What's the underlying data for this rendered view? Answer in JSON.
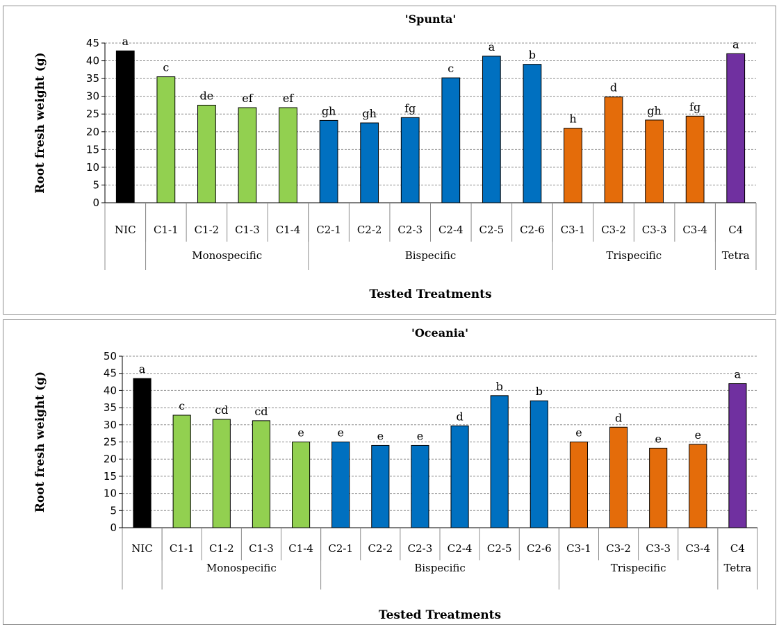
{
  "colors": {
    "control": "#000000",
    "monospecific": "#92D050",
    "bispecific": "#0070C0",
    "trispecific": "#E46C0A",
    "tetra": "#7030A0"
  },
  "chart_data": [
    {
      "type": "bar",
      "title": "'Spunta'",
      "xlabel": "Tested Treatments",
      "ylabel": "Root  fresh weight (g)",
      "ylim": [
        0,
        45
      ],
      "ytick_step": 5,
      "grid": true,
      "categories": [
        "NIC",
        "C1-1",
        "C1-2",
        "C1-3",
        "C1-4",
        "C2-1",
        "C2-2",
        "C2-3",
        "C2-4",
        "C2-5",
        "C2-6",
        "C3-1",
        "C3-2",
        "C3-3",
        "C3-4",
        "C4"
      ],
      "values": [
        42.8,
        35.5,
        27.5,
        26.8,
        26.8,
        23.2,
        22.5,
        24.0,
        35.2,
        41.3,
        39.0,
        21.0,
        29.8,
        23.3,
        24.4,
        42.0
      ],
      "letters": [
        "a",
        "c",
        "de",
        "ef",
        "ef",
        "gh",
        "gh",
        "fg",
        "c",
        "a",
        "b",
        "h",
        "d",
        "gh",
        "fg",
        "a"
      ],
      "groups": [
        {
          "label": "",
          "start": 0,
          "end": 0
        },
        {
          "label": "Monospecific",
          "start": 1,
          "end": 4
        },
        {
          "label": "Bispecific",
          "start": 5,
          "end": 10
        },
        {
          "label": "Trispecific",
          "start": 11,
          "end": 14
        },
        {
          "label": "Tetra",
          "start": 15,
          "end": 15
        }
      ]
    },
    {
      "type": "bar",
      "title": "'Oceania'",
      "xlabel": "Tested Treatments",
      "ylabel": "Root  fresh weight (g)",
      "ylim": [
        0,
        50
      ],
      "ytick_step": 5,
      "grid": true,
      "categories": [
        "NIC",
        "C1-1",
        "C1-2",
        "C1-3",
        "C1-4",
        "C2-1",
        "C2-2",
        "C2-3",
        "C2-4",
        "C2-5",
        "C2-6",
        "C3-1",
        "C3-2",
        "C3-3",
        "C3-4",
        "C4"
      ],
      "values": [
        43.5,
        32.8,
        31.6,
        31.2,
        25.0,
        25.0,
        24.0,
        24.0,
        29.7,
        38.5,
        37.0,
        25.0,
        29.3,
        23.2,
        24.3,
        42.0
      ],
      "letters": [
        "a",
        "c",
        "cd",
        "cd",
        "e",
        "e",
        "e",
        "e",
        "d",
        "b",
        "b",
        "e",
        "d",
        "e",
        "e",
        "a"
      ],
      "groups": [
        {
          "label": "",
          "start": 0,
          "end": 0
        },
        {
          "label": "Monospecific",
          "start": 1,
          "end": 4
        },
        {
          "label": "Bispecific",
          "start": 5,
          "end": 10
        },
        {
          "label": "Trispecific",
          "start": 11,
          "end": 14
        },
        {
          "label": "Tetra",
          "start": 15,
          "end": 15
        }
      ]
    }
  ]
}
